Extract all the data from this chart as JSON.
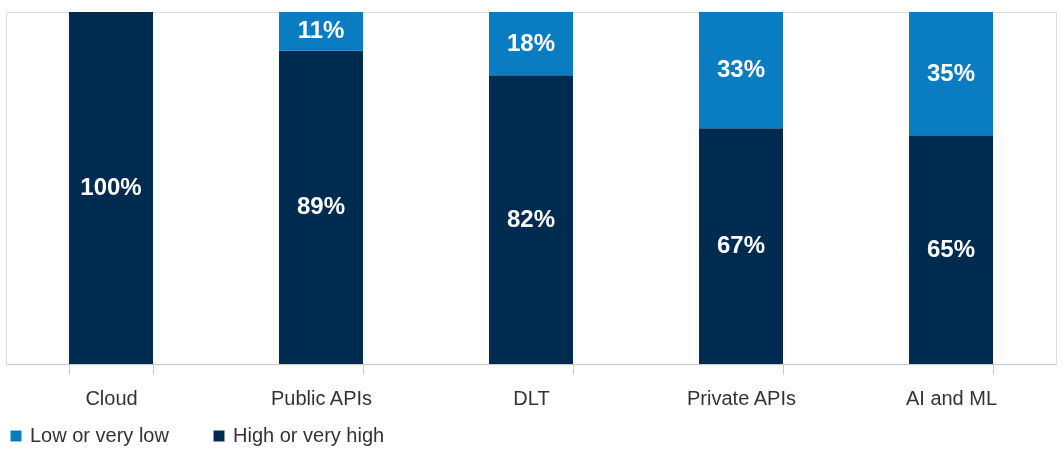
{
  "chart_data": {
    "type": "bar",
    "stacked": true,
    "categories": [
      "Cloud",
      "Public APIs",
      "DLT",
      "Private APIs",
      "AI and ML"
    ],
    "series": [
      {
        "name": "High or very high",
        "color": "#002b50",
        "values": [
          100,
          89,
          82,
          67,
          65
        ],
        "value_labels": [
          "100%",
          "89%",
          "82%",
          "67%",
          "65%"
        ]
      },
      {
        "name": "Low or very low",
        "color": "#0a7cc1",
        "values": [
          null,
          11,
          18,
          33,
          35
        ],
        "value_labels": [
          null,
          "11%",
          "18%",
          "33%",
          "35%"
        ]
      }
    ],
    "legend": "bottom",
    "grid": false,
    "tick_labels": "x"
  }
}
